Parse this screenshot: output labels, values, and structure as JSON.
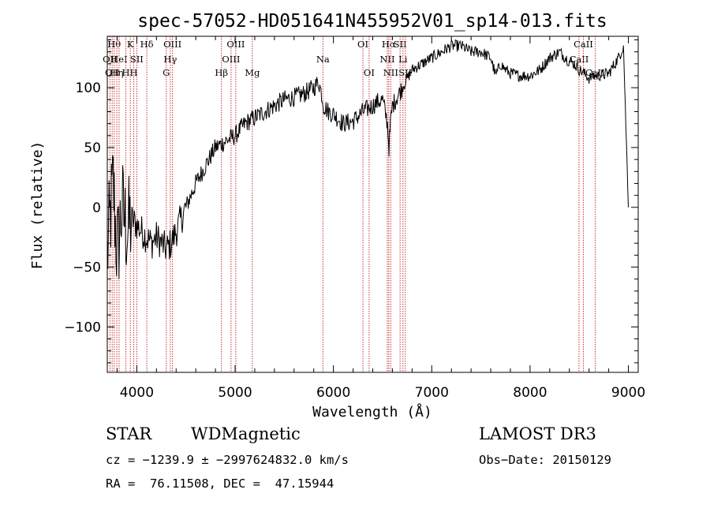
{
  "chart_data": {
    "type": "line",
    "title": "spec-57052-HD051641N455952V01_sp14-013.fits",
    "xlabel": "Wavelength (Å)",
    "ylabel": "Flux (relative)",
    "xlim": [
      3700,
      9100
    ],
    "ylim": [
      -138,
      143
    ],
    "xticks": [
      4000,
      5000,
      6000,
      7000,
      8000,
      9000
    ],
    "yticks": [
      -100,
      -50,
      0,
      50,
      100
    ],
    "grid": false,
    "series": [
      {
        "color": "#000000",
        "x": [
          3700,
          3760,
          3800,
          3850,
          3900,
          3950,
          4000,
          4050,
          4100,
          4150,
          4200,
          4250,
          4300,
          4350,
          4400,
          4450,
          4500,
          4600,
          4700,
          4800,
          4900,
          5000,
          5100,
          5200,
          5300,
          5400,
          5500,
          5600,
          5700,
          5800,
          5850,
          5880,
          5900,
          5950,
          6000,
          6100,
          6200,
          6300,
          6400,
          6450,
          6500,
          6550,
          6565,
          6580,
          6600,
          6700,
          6800,
          6900,
          7000,
          7100,
          7200,
          7300,
          7400,
          7500,
          7600,
          7650,
          7700,
          7750,
          7800,
          7900,
          8000,
          8100,
          8200,
          8300,
          8400,
          8450,
          8500,
          8550,
          8600,
          8650,
          8700,
          8800,
          8900,
          8950,
          9000
        ],
        "y": [
          -40,
          20,
          -40,
          0,
          -20,
          -10,
          -15,
          -20,
          -25,
          -30,
          -25,
          -30,
          -35,
          -30,
          -20,
          -10,
          0,
          20,
          35,
          50,
          55,
          60,
          70,
          75,
          80,
          85,
          90,
          92,
          95,
          100,
          105,
          95,
          85,
          80,
          78,
          70,
          72,
          80,
          85,
          88,
          90,
          70,
          50,
          70,
          85,
          100,
          115,
          120,
          125,
          130,
          135,
          135,
          130,
          130,
          125,
          110,
          120,
          115,
          112,
          110,
          110,
          115,
          125,
          130,
          122,
          120,
          115,
          112,
          108,
          110,
          110,
          112,
          125,
          135,
          0
        ],
        "values": [
          -40,
          20,
          -40,
          0,
          -20,
          -10,
          -15,
          -20,
          -25,
          -30,
          -25,
          -30,
          -35,
          -30,
          -20,
          -10,
          0,
          20,
          35,
          50,
          55,
          60,
          70,
          75,
          80,
          85,
          90,
          92,
          95,
          100,
          105,
          95,
          85,
          80,
          78,
          70,
          72,
          80,
          85,
          88,
          90,
          70,
          50,
          70,
          85,
          100,
          115,
          120,
          125,
          130,
          135,
          135,
          130,
          130,
          125,
          110,
          120,
          115,
          112,
          110,
          110,
          115,
          125,
          130,
          122,
          120,
          115,
          112,
          108,
          110,
          110,
          112,
          125,
          135,
          0
        ]
      }
    ],
    "lines": [
      {
        "wave": 3727,
        "labels": [
          "OII"
        ],
        "row": 1
      },
      {
        "wave": 3750,
        "labels": [
          "OII"
        ],
        "row": 2
      },
      {
        "wave": 3770,
        "labels": [
          "Hθ"
        ],
        "row": 0
      },
      {
        "wave": 3797,
        "labels": [
          "Hη"
        ],
        "row": 2
      },
      {
        "wave": 3820,
        "labels": [
          "HeI"
        ],
        "row": 1
      },
      {
        "wave": 3889,
        "labels": [
          "H"
        ],
        "row": 2
      },
      {
        "wave": 3934,
        "labels": [
          "K"
        ],
        "row": 0
      },
      {
        "wave": 3969,
        "labels": [
          "H"
        ],
        "row": 2
      },
      {
        "wave": 4000,
        "labels": [
          "SII"
        ],
        "row": 1
      },
      {
        "wave": 4102,
        "labels": [
          "Hδ"
        ],
        "row": 0
      },
      {
        "wave": 4300,
        "labels": [
          "G"
        ],
        "row": 2
      },
      {
        "wave": 4341,
        "labels": [
          "Hγ"
        ],
        "row": 1
      },
      {
        "wave": 4363,
        "labels": [
          "OIII"
        ],
        "row": 0
      },
      {
        "wave": 4861,
        "labels": [
          "Hβ"
        ],
        "row": 2
      },
      {
        "wave": 4959,
        "labels": [
          "OIII"
        ],
        "row": 1
      },
      {
        "wave": 5007,
        "labels": [
          "OIII"
        ],
        "row": 0
      },
      {
        "wave": 5175,
        "labels": [
          "Mg"
        ],
        "row": 2
      },
      {
        "wave": 5893,
        "labels": [
          "Na"
        ],
        "row": 1
      },
      {
        "wave": 6300,
        "labels": [
          "OI"
        ],
        "row": 0
      },
      {
        "wave": 6363,
        "labels": [
          "OI"
        ],
        "row": 2
      },
      {
        "wave": 6548,
        "labels": [
          "NII"
        ],
        "row": 1
      },
      {
        "wave": 6563,
        "labels": [
          "Hα"
        ],
        "row": 0
      },
      {
        "wave": 6583,
        "labels": [
          "NII"
        ],
        "row": 2
      },
      {
        "wave": 6678,
        "labels": [
          "SII"
        ],
        "row": 0
      },
      {
        "wave": 6707,
        "labels": [
          "Li"
        ],
        "row": 1
      },
      {
        "wave": 6731,
        "labels": [
          "SII"
        ],
        "row": 2
      },
      {
        "wave": 8498,
        "labels": [
          "CaII"
        ],
        "row": 1
      },
      {
        "wave": 8542,
        "labels": [
          "CaII"
        ],
        "row": 0
      },
      {
        "wave": 8662,
        "labels": [
          "CaII"
        ],
        "row": 2
      }
    ],
    "line_color": "#cc3333"
  },
  "info": {
    "object_class": "STAR",
    "subclass": "WDMagnetic",
    "survey": "LAMOST DR3",
    "cz": "cz = −1239.9 ± −2997624832.0 km/s",
    "obs_date": "Obs−Date: 20150129",
    "radec": "RA =  76.11508, DEC =  47.15944"
  }
}
